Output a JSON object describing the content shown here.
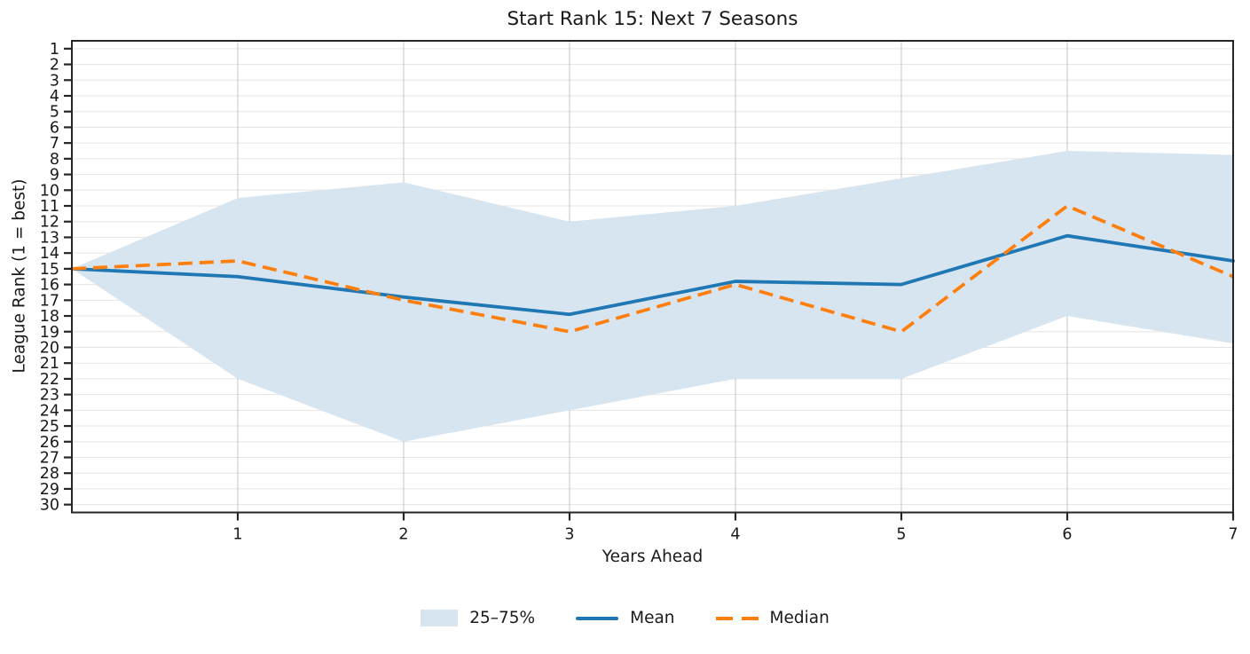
{
  "chart_data": {
    "type": "line",
    "title": "Start Rank 15: Next 7 Seasons",
    "xlabel": "Years Ahead",
    "ylabel": "League Rank (1 = best)",
    "grid": true,
    "x": [
      0,
      1,
      2,
      3,
      4,
      5,
      6,
      7
    ],
    "xticks": [
      1,
      2,
      3,
      4,
      5,
      6,
      7
    ],
    "xlim": [
      0,
      7
    ],
    "yticks": [
      1,
      2,
      3,
      4,
      5,
      6,
      7,
      8,
      9,
      10,
      11,
      12,
      13,
      14,
      15,
      16,
      17,
      18,
      19,
      20,
      21,
      22,
      23,
      24,
      25,
      26,
      27,
      28,
      29,
      30
    ],
    "ylim": [
      0.5,
      30.5
    ],
    "y_axis_inverted": true,
    "band": {
      "label": "25–75%",
      "p25_upper": [
        15,
        10.5,
        9.5,
        12,
        11,
        9.25,
        7.5,
        7.75
      ],
      "p75_lower": [
        15,
        22,
        26,
        24,
        22,
        22,
        18,
        19.75
      ],
      "color": "#d7e5f1"
    },
    "series": [
      {
        "name": "Mean",
        "values": [
          15,
          15.5,
          16.8,
          17.9,
          15.8,
          16,
          12.9,
          14.5
        ],
        "color": "#1f77b4",
        "style": "solid"
      },
      {
        "name": "Median",
        "values": [
          15,
          14.5,
          17,
          19,
          16,
          19,
          11,
          15.5
        ],
        "color": "#ff7f0e",
        "style": "dashed"
      }
    ],
    "legend": {
      "position": "bottom-center",
      "entries": [
        "25–75%",
        "Mean",
        "Median"
      ]
    }
  }
}
